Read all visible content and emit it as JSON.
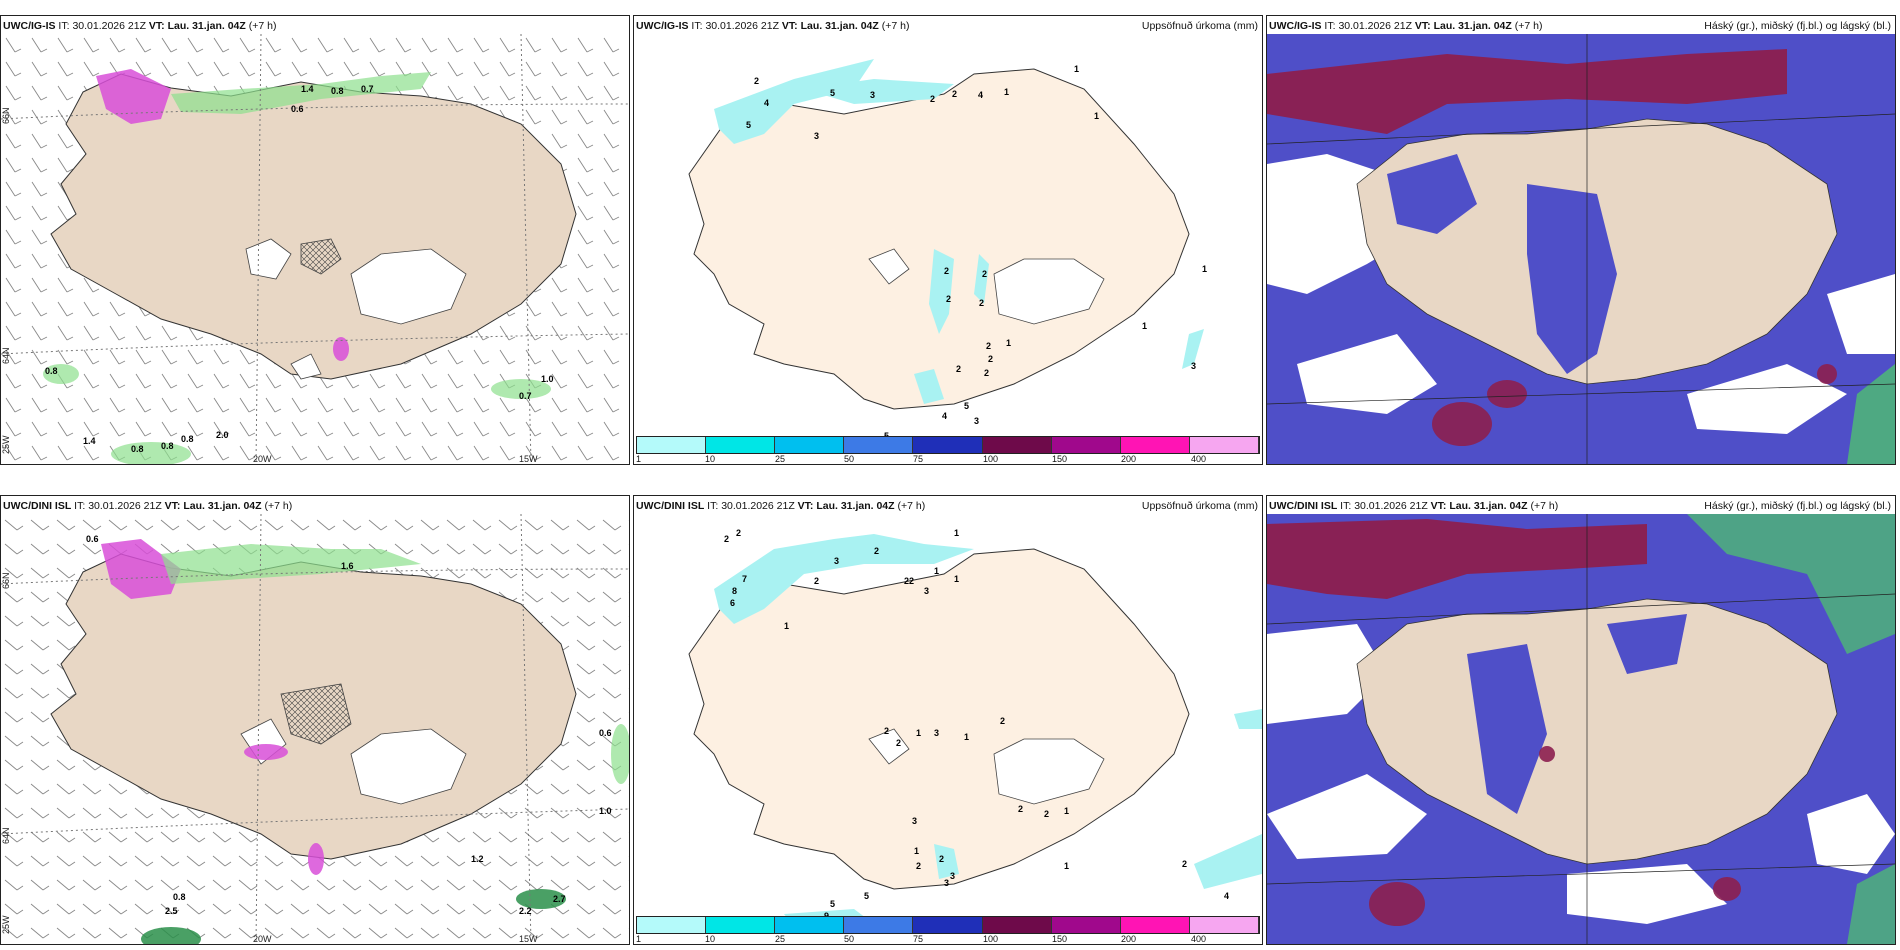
{
  "panels": [
    {
      "id": "p1",
      "model": "UWC/IG-IS",
      "it_label": "IT:",
      "it": "30.01.2026 21Z",
      "vt_label": "VT:",
      "vt": "Lau. 31.jan. 04Z",
      "lead": "(+7 h)",
      "right": ""
    },
    {
      "id": "p2",
      "model": "UWC/IG-IS",
      "it_label": "IT:",
      "it": "30.01.2026 21Z",
      "vt_label": "VT:",
      "vt": "Lau. 31.jan. 04Z",
      "lead": "(+7 h)",
      "right": "Uppsöfnuð úrkoma (mm)"
    },
    {
      "id": "p3",
      "model": "UWC/IG-IS",
      "it_label": "IT:",
      "it": "30.01.2026 21Z",
      "vt_label": "VT:",
      "vt": "Lau. 31.jan. 04Z",
      "lead": "(+7 h)",
      "right": "Háský (gr.), miðský (fj.bl.) og lágský (bl.)"
    },
    {
      "id": "p4",
      "model": "UWC/DINI ISL",
      "it_label": "IT:",
      "it": "30.01.2026 21Z",
      "vt_label": "VT:",
      "vt": "Lau. 31.jan. 04Z",
      "lead": "(+7 h)",
      "right": ""
    },
    {
      "id": "p5",
      "model": "UWC/DINI ISL",
      "it_label": "IT:",
      "it": "30.01.2026 21Z",
      "vt_label": "VT:",
      "vt": "Lau. 31.jan. 04Z",
      "lead": "(+7 h)",
      "right": "Uppsöfnuð úrkoma (mm)"
    },
    {
      "id": "p6",
      "model": "UWC/DINI ISL",
      "it_label": "IT:",
      "it": "30.01.2026 21Z",
      "vt_label": "VT:",
      "vt": "Lau. 31.jan. 04Z",
      "lead": "(+7 h)",
      "right": "Háský (gr.), miðský (fj.bl.) og lágský (bl.)"
    }
  ],
  "axis_labels": {
    "lat_66": "66N",
    "lat_64": "64N",
    "lat_65": "65N",
    "lon_20": "20W",
    "lon_15": "15W",
    "lon_25": "25W"
  },
  "legend": {
    "labels": [
      "1",
      "10",
      "25",
      "50",
      "75",
      "100",
      "150",
      "200",
      "400"
    ],
    "colors": [
      "#b4fafa",
      "#00e6e6",
      "#00bfef",
      "#3d7ae6",
      "#1f2fb8",
      "#6e0a4a",
      "#a0088c",
      "#ff14b4",
      "#f6a6f0"
    ]
  },
  "colors": {
    "land": "#e8d7c5",
    "land_precip": "#fdf0e2",
    "glacier": "#ffffff",
    "precip_light": "#a9f2f2",
    "cloud_low": "#4f4fc8",
    "cloud_mid": "#8c1f4f",
    "cloud_high": "#4dbf70",
    "wind_green": "#8de08d",
    "snow_pink": "#d84fd8"
  },
  "values_ig_wind": [
    "1.4",
    "0.8",
    "0.7",
    "0.6",
    "0.8",
    "1.4",
    "0.8",
    "0.8",
    "0.8",
    "2.0",
    "1.0",
    "0.7"
  ],
  "values_ig_precip": [
    "2",
    "1",
    "5",
    "3",
    "2",
    "2",
    "4",
    "1",
    "1",
    "4",
    "5",
    "3",
    "2",
    "2",
    "2",
    "2",
    "1",
    "2",
    "2",
    "2",
    "2",
    "1",
    "5",
    "4",
    "3",
    "1",
    "3",
    "2",
    "1",
    "5",
    "3",
    "5"
  ],
  "values_dini_wind": [
    "0.6",
    "1.6",
    "0.6",
    "1.0",
    "1.2",
    "0.8",
    "2.2",
    "2.7",
    "2.5"
  ],
  "values_dini_precip": [
    "2",
    "2",
    "3",
    "2",
    "2",
    "2",
    "1",
    "7",
    "8",
    "6",
    "1",
    "2",
    "3",
    "1",
    "1",
    "2",
    "2",
    "1",
    "3",
    "1",
    "2",
    "2",
    "2",
    "1",
    "3",
    "1",
    "2",
    "2",
    "5",
    "3",
    "4",
    "9",
    "5",
    "3",
    "2",
    "1"
  ]
}
